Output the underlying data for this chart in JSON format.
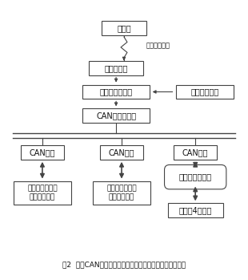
{
  "title": "图2  基于CAN总线的可穿戴型下肃助力机器人控制系统框图",
  "monitor_label": "监控端",
  "wireless_net_label": "无线局域网络",
  "wireless_card_label": "无线通信卡",
  "upper_computer_label": "上层控制计算机",
  "power_module_label": "电源管理模块",
  "can_adapter_label": "CAN总线适配卡",
  "can_node_label": "CAN节点",
  "sensor1_label": "左腿力传感器和\n脚底力传感器",
  "sensor2_label": "右腿力传感器和\n脚底力传感器",
  "motor_driver_label": "直流电机驱动网",
  "motors_label": "左右腿4个电机",
  "bg_color": "#ffffff",
  "box_edge_color": "#444444",
  "line_color": "#444444",
  "text_color": "#111111",
  "font_size": 7.0,
  "title_font_size": 7.0
}
